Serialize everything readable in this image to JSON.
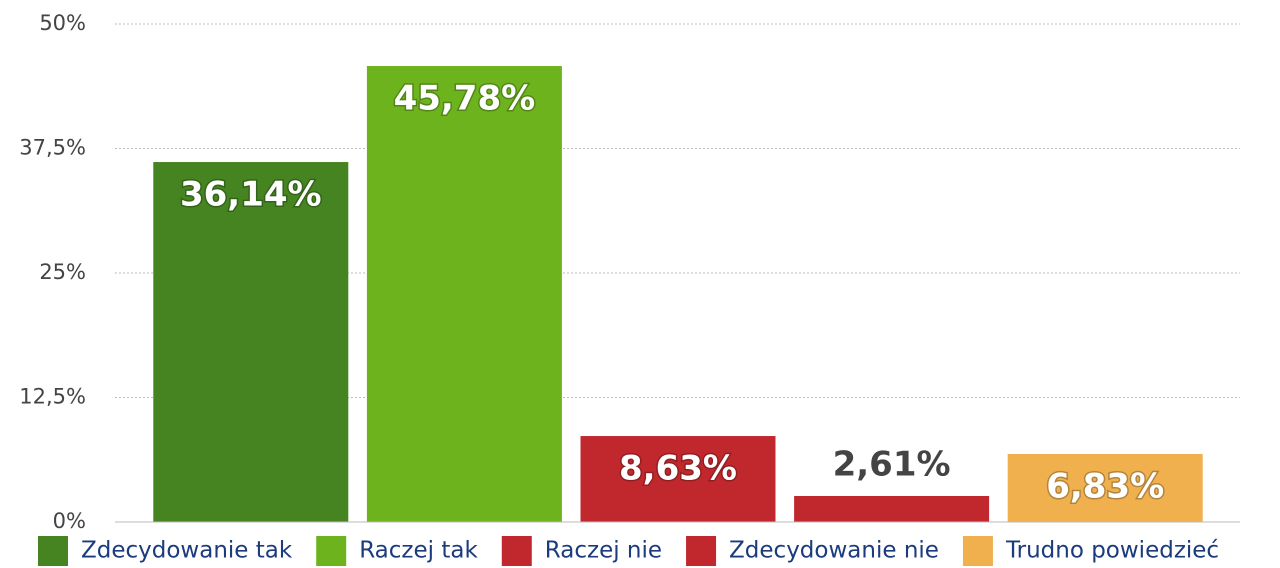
{
  "chart_data": {
    "type": "bar",
    "series": [
      {
        "name": "Zdecydowanie tak",
        "color": "#458420",
        "values": [
          36.14
        ],
        "value_labels": [
          "36,14%"
        ]
      },
      {
        "name": "Raczej tak",
        "color": "#6db31e",
        "values": [
          45.78
        ],
        "value_labels": [
          "45,78%"
        ]
      },
      {
        "name": "Raczej nie",
        "color": "#c0282e",
        "values": [
          8.63
        ],
        "value_labels": [
          "8,63%"
        ]
      },
      {
        "name": "Zdecydowanie nie",
        "color": "#c0282e",
        "values": [
          2.61
        ],
        "value_labels": [
          "2,61%"
        ]
      },
      {
        "name": "Trudno powiedzieć",
        "color": "#f0b04e",
        "values": [
          6.83
        ],
        "value_labels": [
          "6,83%"
        ]
      }
    ],
    "ylim": [
      0,
      50
    ],
    "yticks": [
      {
        "value": 0,
        "label": "0%"
      },
      {
        "value": 12.5,
        "label": "12,5%"
      },
      {
        "value": 25,
        "label": "25%"
      },
      {
        "value": 37.5,
        "label": "37,5%"
      },
      {
        "value": 50,
        "label": "50%"
      }
    ],
    "grid": true,
    "legend": "bottom"
  }
}
